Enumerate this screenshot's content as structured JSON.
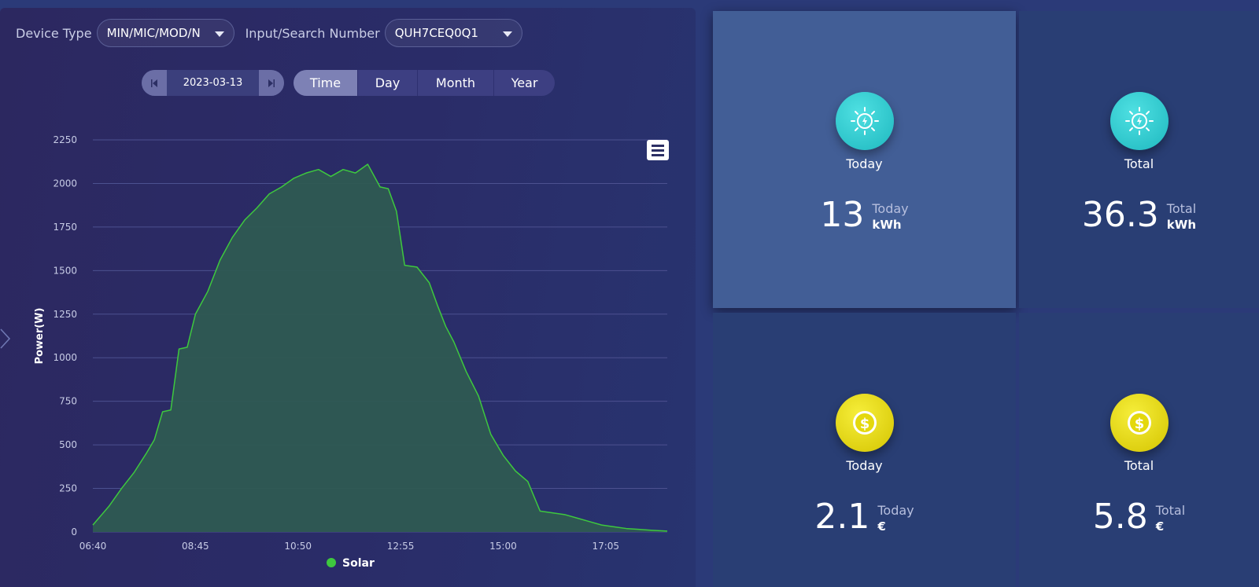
{
  "filters": {
    "device_type_label": "Device Type",
    "device_type_value": "MIN/MIC/MOD/N",
    "search_label": "Input/Search Number",
    "search_value": "QUH7CEQ0Q1"
  },
  "date_nav": {
    "date": "2023-03-13"
  },
  "period_tabs": [
    "Time",
    "Day",
    "Month",
    "Year"
  ],
  "active_tab": "Time",
  "cards": [
    {
      "title": "Today",
      "value": "13",
      "side_label": "Today",
      "unit": "kWh",
      "icon": "solar-sun-icon"
    },
    {
      "title": "Total",
      "value": "36.3",
      "side_label": "Total",
      "unit": "kWh",
      "icon": "solar-sun-icon"
    },
    {
      "title": "Today",
      "value": "2.1",
      "side_label": "Today",
      "unit": "€",
      "icon": "dollar-coin-icon"
    },
    {
      "title": "Total",
      "value": "5.8",
      "side_label": "Total",
      "unit": "€",
      "icon": "dollar-coin-icon"
    }
  ],
  "colors": {
    "series_line": "#3ec83e",
    "series_fill": "#2e5a52",
    "active_card": "#425e96",
    "teal_icon": "#27c4c9",
    "gold_icon": "#e4d80c"
  },
  "chart_data": {
    "type": "area",
    "title": "",
    "xlabel": "",
    "ylabel": "Power(W)",
    "ylim": [
      0,
      2250
    ],
    "yticks": [
      0,
      250,
      500,
      750,
      1000,
      1250,
      1500,
      1750,
      2000,
      2250
    ],
    "xlim": [
      "06:40",
      "18:20"
    ],
    "xticks": [
      "06:40",
      "08:45",
      "10:50",
      "12:55",
      "15:00",
      "17:05"
    ],
    "legend": "bottom-center",
    "grid": true,
    "series": [
      {
        "name": "Solar",
        "x": [
          "06:40",
          "07:00",
          "07:15",
          "07:30",
          "07:45",
          "07:55",
          "08:05",
          "08:15",
          "08:25",
          "08:35",
          "08:45",
          "09:00",
          "09:15",
          "09:30",
          "09:45",
          "10:00",
          "10:15",
          "10:30",
          "10:45",
          "11:00",
          "11:15",
          "11:30",
          "11:45",
          "12:00",
          "12:15",
          "12:30",
          "12:40",
          "12:50",
          "13:00",
          "13:15",
          "13:30",
          "13:40",
          "13:50",
          "14:00",
          "14:15",
          "14:30",
          "14:45",
          "15:00",
          "15:15",
          "15:30",
          "15:45",
          "16:00",
          "16:15",
          "16:30",
          "16:45",
          "17:00",
          "17:15",
          "17:30",
          "17:45",
          "18:00",
          "18:20"
        ],
        "values": [
          40,
          150,
          250,
          340,
          450,
          530,
          690,
          700,
          1050,
          1060,
          1250,
          1380,
          1560,
          1690,
          1790,
          1860,
          1940,
          1980,
          2030,
          2060,
          2080,
          2040,
          2080,
          2060,
          2110,
          1980,
          1970,
          1840,
          1530,
          1520,
          1430,
          1300,
          1180,
          1090,
          920,
          780,
          560,
          440,
          350,
          290,
          120,
          110,
          100,
          80,
          60,
          40,
          30,
          20,
          15,
          10,
          5
        ]
      }
    ]
  }
}
